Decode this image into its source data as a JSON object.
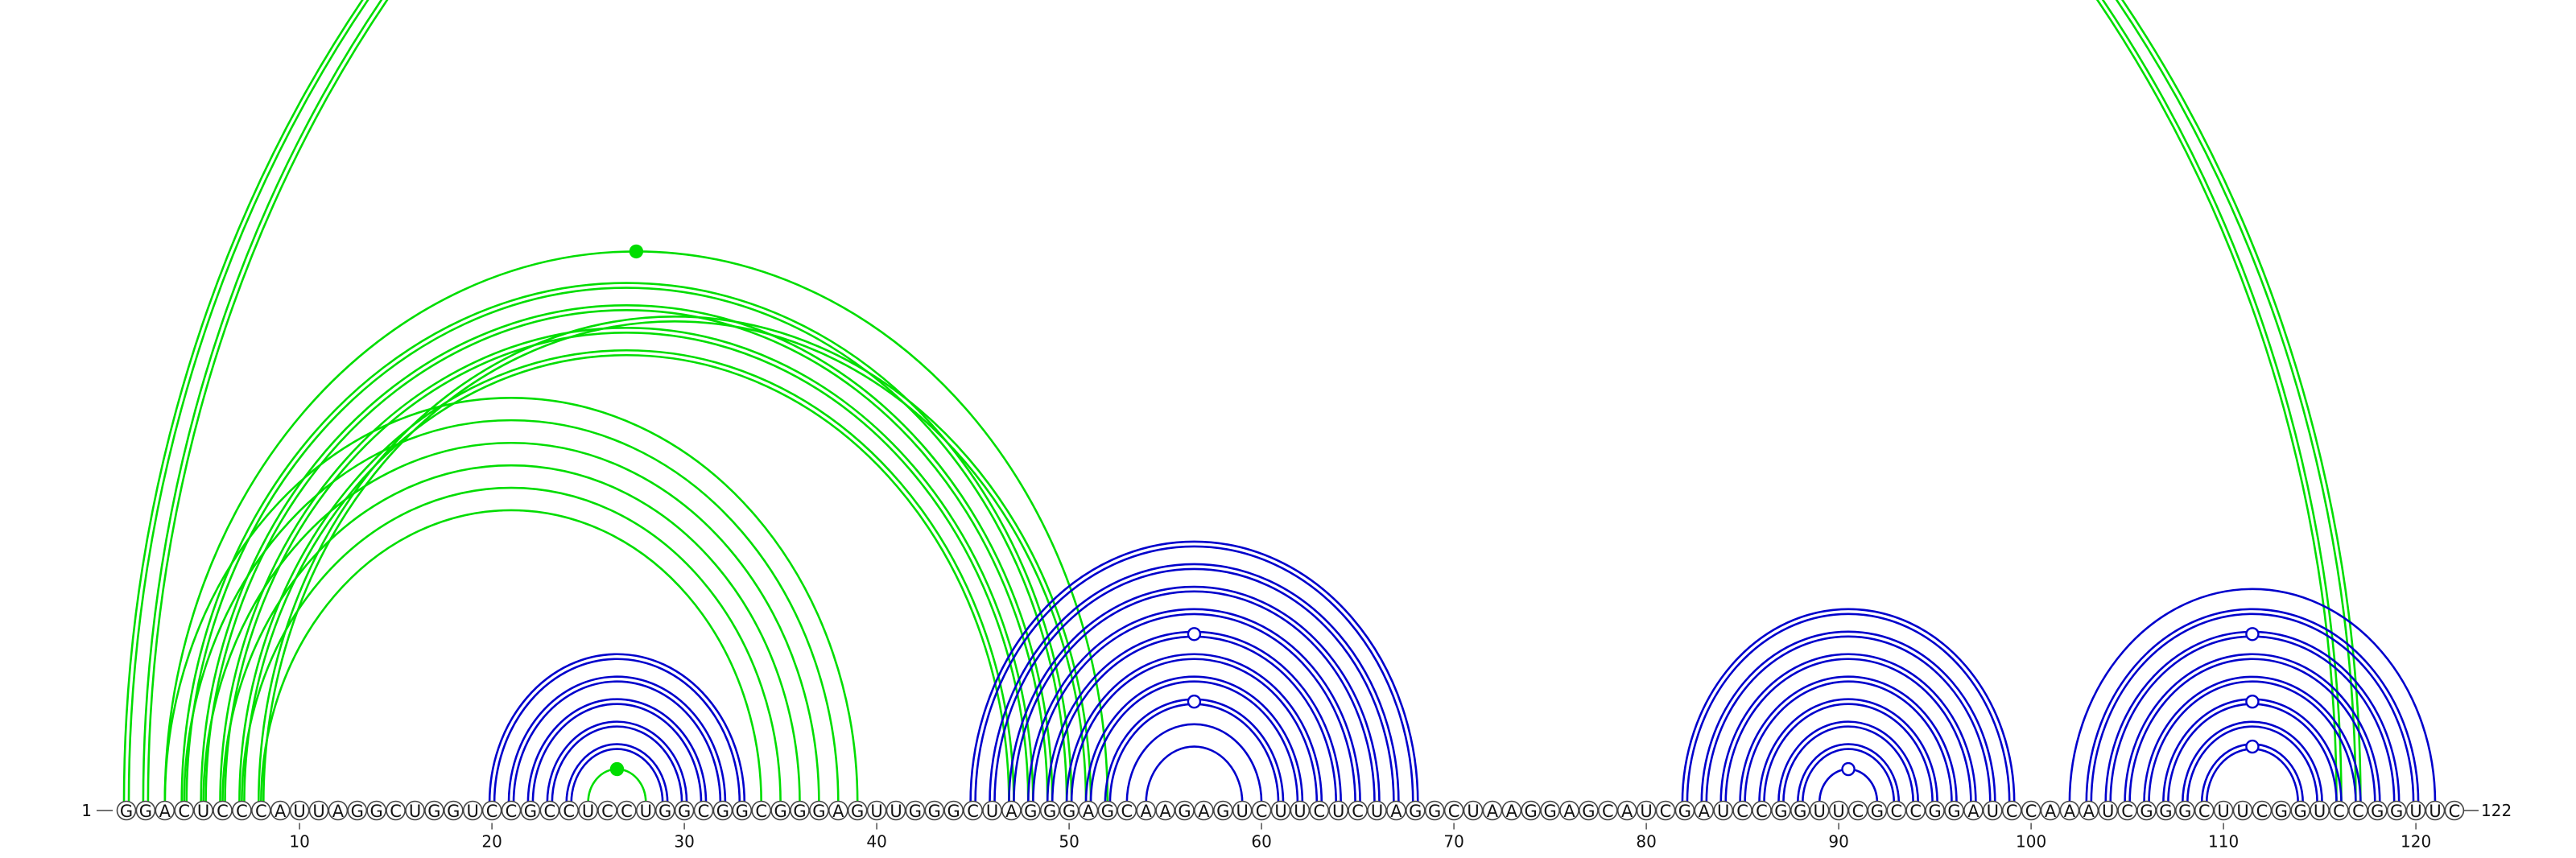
{
  "chart_data": {
    "type": "arc-diagram",
    "sequence": "GGACUCCCAUUAGGCUGGUCCGCCUCCUGGCGGCGGGAGUUGGGCUAGGGAGCAAGAGUCUUCUCUAGGCUAAGGAGCAUCGAUCCGGUUCGCCGGAUCCAAAUCGGGCUUCGGUCCGGUUC",
    "start_label": "1",
    "end_label": "122",
    "ticks": [
      10,
      20,
      30,
      40,
      50,
      60,
      70,
      80,
      90,
      100,
      110,
      120
    ],
    "colors": {
      "green": "#00dd00",
      "blue": "#0000cc"
    },
    "arcs": [
      {
        "i": 1,
        "j": 116,
        "color": "green",
        "double": true
      },
      {
        "i": 2,
        "j": 117,
        "color": "green",
        "double": true
      },
      {
        "i": 3,
        "j": 39,
        "color": "green"
      },
      {
        "i": 4,
        "j": 38,
        "color": "green"
      },
      {
        "i": 5,
        "j": 37,
        "color": "green"
      },
      {
        "i": 6,
        "j": 36,
        "color": "green"
      },
      {
        "i": 7,
        "j": 35,
        "color": "green"
      },
      {
        "i": 8,
        "j": 34,
        "color": "green"
      },
      {
        "i": 3,
        "j": 52,
        "color": "green"
      },
      {
        "i": 4,
        "j": 50,
        "color": "green",
        "double": true
      },
      {
        "i": 5,
        "j": 49,
        "color": "green",
        "double": true
      },
      {
        "i": 6,
        "j": 48,
        "color": "green",
        "double": true
      },
      {
        "i": 7,
        "j": 47,
        "color": "green",
        "double": true
      },
      {
        "i": 8,
        "j": 51,
        "color": "green",
        "double": true
      },
      {
        "i": 25,
        "j": 28,
        "color": "green"
      },
      {
        "i": 20,
        "j": 33,
        "color": "blue",
        "double": true
      },
      {
        "i": 21,
        "j": 32,
        "color": "blue",
        "double": true
      },
      {
        "i": 22,
        "j": 31,
        "color": "blue",
        "double": true
      },
      {
        "i": 23,
        "j": 30,
        "color": "blue",
        "double": true
      },
      {
        "i": 24,
        "j": 29,
        "color": "blue",
        "double": true
      },
      {
        "i": 45,
        "j": 68,
        "color": "blue",
        "double": true
      },
      {
        "i": 46,
        "j": 67,
        "color": "blue",
        "double": true
      },
      {
        "i": 47,
        "j": 66,
        "color": "blue",
        "double": true
      },
      {
        "i": 48,
        "j": 65,
        "color": "blue",
        "double": true
      },
      {
        "i": 49,
        "j": 64,
        "color": "blue",
        "double": true
      },
      {
        "i": 50,
        "j": 63,
        "color": "blue",
        "double": true
      },
      {
        "i": 51,
        "j": 62,
        "color": "blue",
        "double": true
      },
      {
        "i": 52,
        "j": 61,
        "color": "blue",
        "double": true
      },
      {
        "i": 53,
        "j": 60,
        "color": "blue"
      },
      {
        "i": 54,
        "j": 59,
        "color": "blue"
      },
      {
        "i": 82,
        "j": 99,
        "color": "blue",
        "double": true
      },
      {
        "i": 83,
        "j": 98,
        "color": "blue",
        "double": true
      },
      {
        "i": 84,
        "j": 97,
        "color": "blue",
        "double": true
      },
      {
        "i": 85,
        "j": 96,
        "color": "blue",
        "double": true
      },
      {
        "i": 86,
        "j": 95,
        "color": "blue",
        "double": true
      },
      {
        "i": 87,
        "j": 94,
        "color": "blue",
        "double": true
      },
      {
        "i": 88,
        "j": 93,
        "color": "blue",
        "double": true
      },
      {
        "i": 89,
        "j": 92,
        "color": "blue"
      },
      {
        "i": 102,
        "j": 121,
        "color": "blue"
      },
      {
        "i": 103,
        "j": 120,
        "color": "blue",
        "double": true
      },
      {
        "i": 104,
        "j": 119,
        "color": "blue",
        "double": true
      },
      {
        "i": 105,
        "j": 118,
        "color": "blue",
        "double": true
      },
      {
        "i": 106,
        "j": 117,
        "color": "blue",
        "double": true
      },
      {
        "i": 107,
        "j": 116,
        "color": "blue",
        "double": true
      },
      {
        "i": 108,
        "j": 115,
        "color": "blue",
        "double": true
      },
      {
        "i": 109,
        "j": 114,
        "color": "blue",
        "double": true
      }
    ],
    "markers": [
      {
        "i": 3,
        "j": 52,
        "color": "green",
        "filled": true
      },
      {
        "i": 25,
        "j": 28,
        "color": "green",
        "filled": true
      },
      {
        "i": 49,
        "j": 64,
        "color": "blue",
        "filled": false
      },
      {
        "i": 52,
        "j": 61,
        "color": "blue",
        "filled": false
      },
      {
        "i": 89,
        "j": 92,
        "color": "blue",
        "filled": false
      },
      {
        "i": 104,
        "j": 119,
        "color": "blue",
        "filled": false
      },
      {
        "i": 107,
        "j": 116,
        "color": "blue",
        "filled": false
      },
      {
        "i": 109,
        "j": 114,
        "color": "blue",
        "filled": false
      }
    ]
  }
}
